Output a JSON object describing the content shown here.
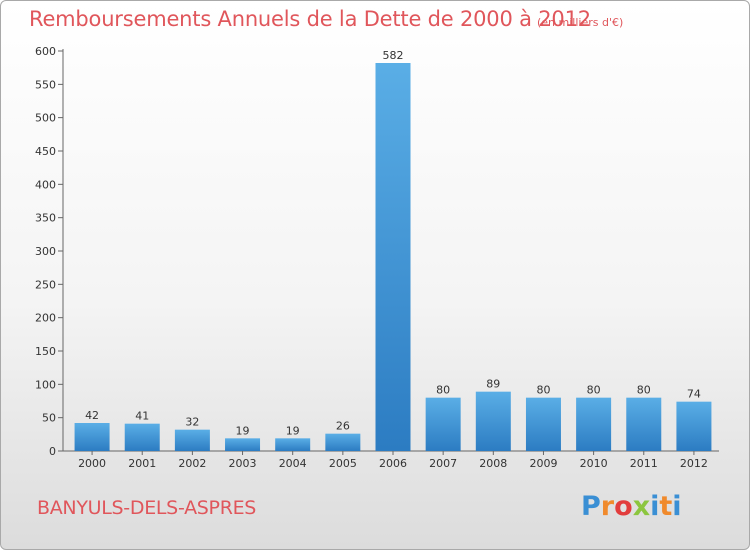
{
  "header": {
    "title": "Remboursements Annuels de la Dette de 2000 à 2012",
    "subtitle": "(en milliers d'€)"
  },
  "footer": {
    "commune": "BANYULS-DELS-ASPRES",
    "brand_letters": [
      "P",
      "r",
      "o",
      "x",
      "i",
      "t",
      "i"
    ],
    "brand_colors": [
      "#3a8fd4",
      "#f08a2c",
      "#e23d3d",
      "#8cc63f",
      "#3a8fd4",
      "#f08a2c",
      "#3a8fd4"
    ]
  },
  "colors": {
    "bar_light": "#5aaee6",
    "bar_dark": "#2c7cc2",
    "title": "#e0565b",
    "axis": "#666666"
  },
  "chart_data": {
    "type": "bar",
    "title": "Remboursements Annuels de la Dette de 2000 à 2012",
    "subtitle": "(en milliers d'€)",
    "categories": [
      "2000",
      "2001",
      "2002",
      "2003",
      "2004",
      "2005",
      "2006",
      "2007",
      "2008",
      "2009",
      "2010",
      "2011",
      "2012"
    ],
    "values": [
      42,
      41,
      32,
      19,
      19,
      26,
      582,
      80,
      89,
      80,
      80,
      80,
      74
    ],
    "yticks": [
      0,
      50,
      100,
      150,
      200,
      250,
      300,
      350,
      400,
      450,
      500,
      550,
      600
    ],
    "ylim": [
      0,
      600
    ],
    "xlabel": "",
    "ylabel": "",
    "grid": false,
    "legend": "none"
  }
}
